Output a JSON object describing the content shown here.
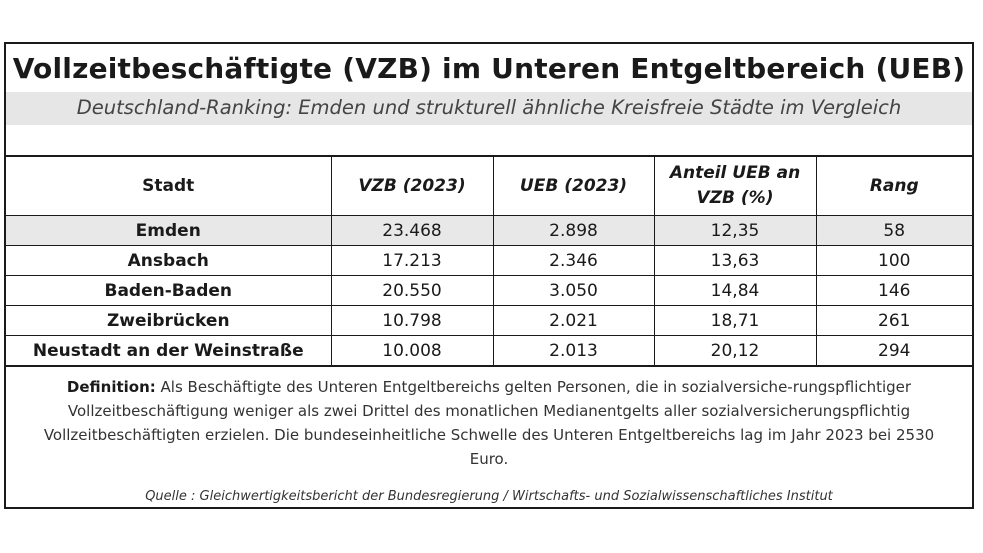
{
  "title": "Vollzeitbeschäftigte (VZB) im Unteren Entgeltbereich (UEB)",
  "subtitle": "Deutschland-Ranking: Emden und strukturell ähnliche Kreisfreie Städte im Vergleich",
  "table": {
    "headers": {
      "stadt": "Stadt",
      "vzb": "VZB (2023)",
      "ueb": "UEB (2023)",
      "anteil": "Anteil UEB an VZB (%)",
      "rang": "Rang"
    },
    "rows": [
      {
        "stadt": "Emden",
        "vzb": "23.468",
        "ueb": "2.898",
        "anteil": "12,35",
        "rang": "58"
      },
      {
        "stadt": "Ansbach",
        "vzb": "17.213",
        "ueb": "2.346",
        "anteil": "13,63",
        "rang": "100"
      },
      {
        "stadt": "Baden-Baden",
        "vzb": "20.550",
        "ueb": "3.050",
        "anteil": "14,84",
        "rang": "146"
      },
      {
        "stadt": "Zweibrücken",
        "vzb": "10.798",
        "ueb": "2.021",
        "anteil": "18,71",
        "rang": "261"
      },
      {
        "stadt": "Neustadt an der Weinstraße",
        "vzb": "10.008",
        "ueb": "2.013",
        "anteil": "20,12",
        "rang": "294"
      }
    ],
    "highlight_color": "#e8e8e8"
  },
  "definition": {
    "label": "Definition:",
    "text": "Als Beschäftigte des Unteren Entgeltbereichs gelten Personen, die in sozialversiche-rungspflichtiger Vollzeitbeschäftigung weniger als zwei Drittel des monatlichen Medianentgelts aller sozialversicherungspflichtig Vollzeitbeschäftigten erzielen. Die bundeseinheitliche Schwelle des Unteren Entgeltbereichs lag im Jahr 2023 bei 2530 Euro."
  },
  "source": "Quelle : Gleichwertigkeitsbericht der Bundesregierung / Wirtschafts- und Sozialwissenschaftliches Institut"
}
